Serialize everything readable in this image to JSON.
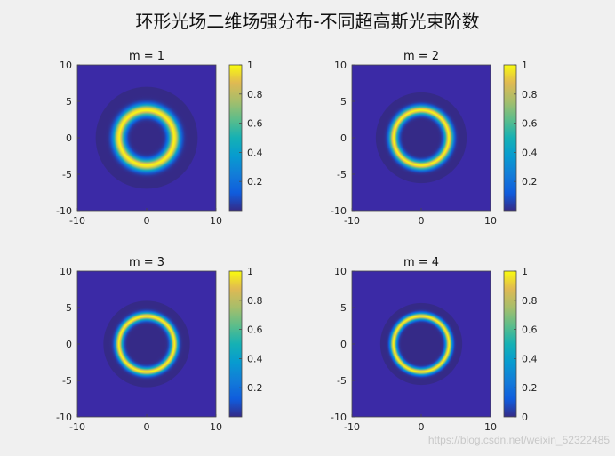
{
  "figure": {
    "title": "环形光场二维场强分布-不同超高斯光束阶数",
    "watermark": "https://blog.csdn.net/weixin_52322485"
  },
  "colors": {
    "background": "#f0f0f0",
    "plot_background": "#3b2aa6",
    "axis": "#4a4a4a",
    "text": "#111111",
    "watermark": "#c8c8c8"
  },
  "chart_data": [
    {
      "type": "heatmap",
      "title": "m = 1",
      "xlim": [
        -10,
        10
      ],
      "ylim": [
        -10,
        10
      ],
      "x_ticks": [
        -10,
        0,
        10
      ],
      "y_ticks": [
        10,
        5,
        0,
        -5,
        -10
      ],
      "ring_radius": 4,
      "ring_width": 1.05,
      "value_range": [
        0,
        1
      ],
      "colorbar": {
        "ticks": [
          1,
          0.8,
          0.6,
          0.4,
          0.2
        ],
        "range": [
          0,
          1
        ]
      }
    },
    {
      "type": "heatmap",
      "title": "m = 2",
      "xlim": [
        -10,
        10
      ],
      "ylim": [
        -10,
        10
      ],
      "x_ticks": [
        -10,
        0,
        10
      ],
      "y_ticks": [
        10,
        5,
        0,
        -5,
        -10
      ],
      "ring_radius": 4,
      "ring_width": 0.8,
      "value_range": [
        0,
        1
      ],
      "colorbar": {
        "ticks": [
          1,
          0.8,
          0.6,
          0.4,
          0.2
        ],
        "range": [
          0,
          1
        ]
      }
    },
    {
      "type": "heatmap",
      "title": "m = 3",
      "xlim": [
        -10,
        10
      ],
      "ylim": [
        -10,
        10
      ],
      "x_ticks": [
        -10,
        0,
        10
      ],
      "y_ticks": [
        10,
        5,
        0,
        -5,
        -10
      ],
      "ring_radius": 4,
      "ring_width": 0.7,
      "value_range": [
        0,
        1
      ],
      "colorbar": {
        "ticks": [
          1,
          0.8,
          0.6,
          0.4,
          0.2
        ],
        "range": [
          0,
          1
        ]
      }
    },
    {
      "type": "heatmap",
      "title": "m = 4",
      "xlim": [
        -10,
        10
      ],
      "ylim": [
        -10,
        10
      ],
      "x_ticks": [
        -10,
        0,
        10
      ],
      "y_ticks": [
        10,
        5,
        0,
        -5,
        -10
      ],
      "ring_radius": 4,
      "ring_width": 0.6,
      "value_range": [
        0,
        1
      ],
      "colorbar": {
        "ticks": [
          1,
          0.8,
          0.6,
          0.4,
          0.2,
          0
        ],
        "range": [
          0,
          1
        ]
      }
    }
  ]
}
